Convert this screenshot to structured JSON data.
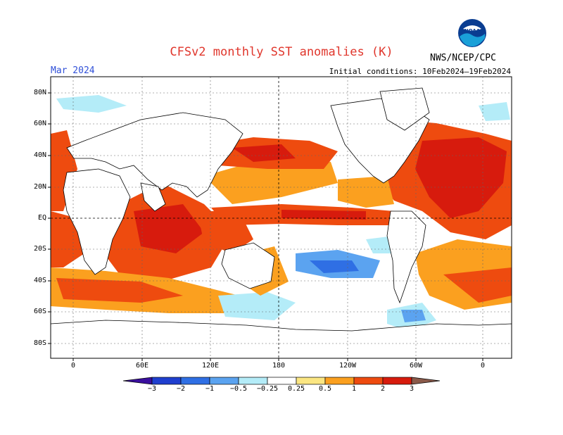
{
  "header": {
    "title": "CFSv2 monthly SST anomalies (K)",
    "month": "Mar 2024",
    "initial_conditions": "Initial conditions: 10Feb2024—19Feb2024",
    "agency": "NWS/NCEP/CPC",
    "logo_text": "NOAA"
  },
  "axes": {
    "lat_labels": [
      "80N",
      "60N",
      "40N",
      "20N",
      "EQ",
      "20S",
      "40S",
      "60S",
      "80S"
    ],
    "lon_labels": [
      "0",
      "60E",
      "120E",
      "180",
      "120W",
      "60W",
      "0"
    ]
  },
  "colorbar": {
    "labels": [
      "−3",
      "−2",
      "−1",
      "−0.5",
      "−0.25",
      "0.25",
      "0.5",
      "1",
      "2",
      "3"
    ],
    "colors": {
      "lt_m3": "#3a0f9e",
      "m3_m2": "#1f3fcf",
      "m2_m1": "#2f6fe4",
      "m1_m05": "#5ba3f0",
      "m05_m025": "#b4ecf8",
      "neutral": "#ffffff",
      "p025_p05": "#fbe682",
      "p05_p1": "#fba01f",
      "p1_p2": "#ee4b0f",
      "p2_p3": "#d71b0d",
      "gt_p3": "#a80f0f",
      "extreme": "#8a5a4a"
    }
  },
  "map_colors": {
    "ocean_bg": "#fbe682",
    "land": "#ffffff"
  }
}
